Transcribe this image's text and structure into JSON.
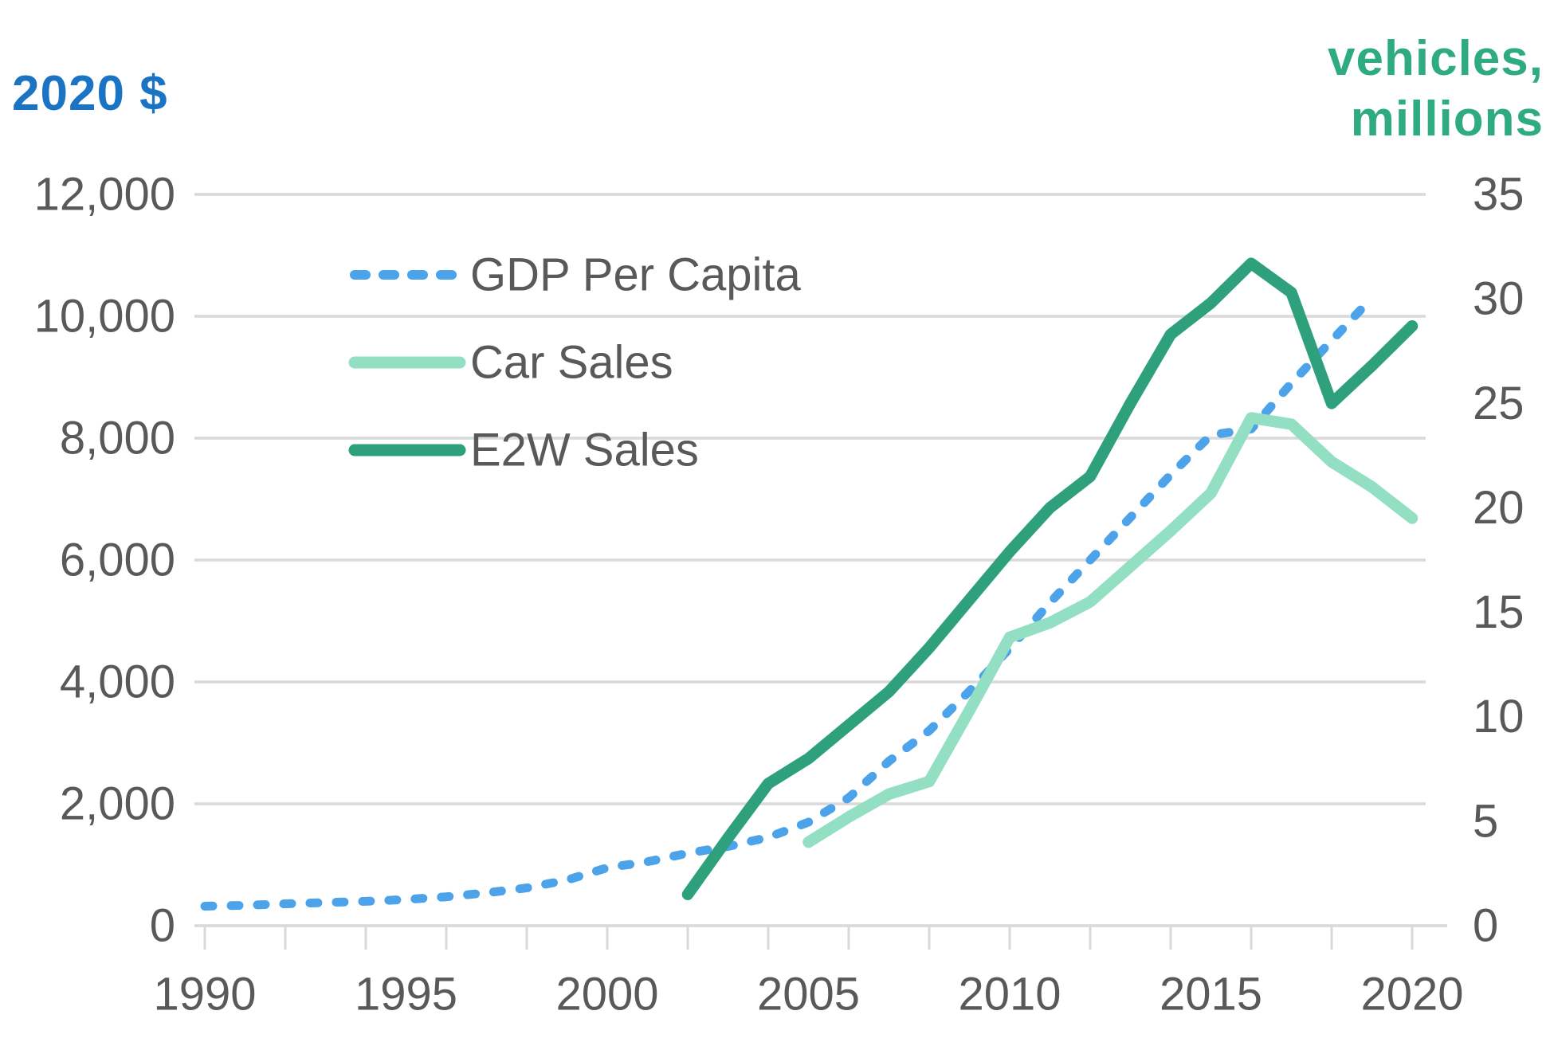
{
  "axes": {
    "left_title": "2020 $",
    "right_title_lines": [
      "vehicles,",
      "millions"
    ],
    "left_title_color": "#1B73C4",
    "right_title_color": "#2FAB81",
    "tick_label_color": "#595959",
    "grid_color": "#D9D9D9",
    "left_tick_labels": [
      "12,000",
      "10,000",
      "8,000",
      "6,000",
      "4,000",
      "2,000",
      "0"
    ],
    "right_tick_labels": [
      "35",
      "30",
      "25",
      "20",
      "15",
      "10",
      "5",
      "0"
    ],
    "x_tick_labels": [
      "1990",
      "1995",
      "2000",
      "2005",
      "2010",
      "2015",
      "2020"
    ]
  },
  "legend": {
    "items": [
      "GDP Per Capita",
      "Car Sales",
      "E2W Sales"
    ]
  },
  "chart_data": {
    "type": "line",
    "title": "",
    "xlabel": "",
    "x_range": [
      1990,
      2020
    ],
    "x_tick_step_labels": 5,
    "x_tick_step_marks": 2,
    "grid": "horizontal",
    "legend_position": "upper-left-inside",
    "left_axis": {
      "label": "2020 $",
      "min": 0,
      "max": 12000,
      "gridline_step": 2000
    },
    "right_axis": {
      "label": "vehicles, millions",
      "min": 0,
      "max": 35,
      "label_step": 5
    },
    "series": [
      {
        "name": "GDP Per Capita",
        "axis": "left",
        "color": "#4CA3EA",
        "style": "dashed",
        "x": [
          1990,
          1991,
          1992,
          1993,
          1994,
          1995,
          1996,
          1997,
          1998,
          1999,
          2000,
          2001,
          2002,
          2003,
          2004,
          2005,
          2006,
          2007,
          2008,
          2009,
          2010,
          2011,
          2012,
          2013,
          2014,
          2015,
          2016,
          2017,
          2018,
          2019
        ],
        "values": [
          320,
          335,
          360,
          380,
          400,
          430,
          475,
          540,
          620,
          750,
          950,
          1050,
          1190,
          1300,
          1450,
          1700,
          2100,
          2700,
          3200,
          3850,
          4550,
          5300,
          6000,
          6700,
          7400,
          8050,
          8150,
          8900,
          9600,
          10300
        ]
      },
      {
        "name": "Car Sales",
        "axis": "right",
        "color": "#93DFC4",
        "style": "solid",
        "x": [
          2005,
          2006,
          2007,
          2008,
          2009,
          2010,
          2011,
          2012,
          2013,
          2014,
          2015,
          2016,
          2017,
          2018,
          2019,
          2020
        ],
        "values": [
          4.0,
          5.2,
          6.3,
          6.9,
          10.3,
          13.8,
          14.5,
          15.5,
          17.2,
          18.9,
          20.7,
          24.3,
          24.0,
          22.2,
          21.0,
          19.5
        ]
      },
      {
        "name": "E2W Sales",
        "axis": "right",
        "color": "#2EA17C",
        "style": "solid",
        "x": [
          2002,
          2003,
          2004,
          2005,
          2006,
          2007,
          2008,
          2009,
          2010,
          2011,
          2012,
          2013,
          2014,
          2015,
          2016,
          2017,
          2018,
          2019,
          2020
        ],
        "values": [
          1.5,
          4.2,
          6.8,
          8.0,
          9.6,
          11.2,
          13.3,
          15.6,
          17.9,
          20.0,
          21.5,
          25.0,
          28.3,
          29.8,
          31.7,
          30.3,
          25.0,
          26.8,
          28.7
        ]
      }
    ]
  }
}
